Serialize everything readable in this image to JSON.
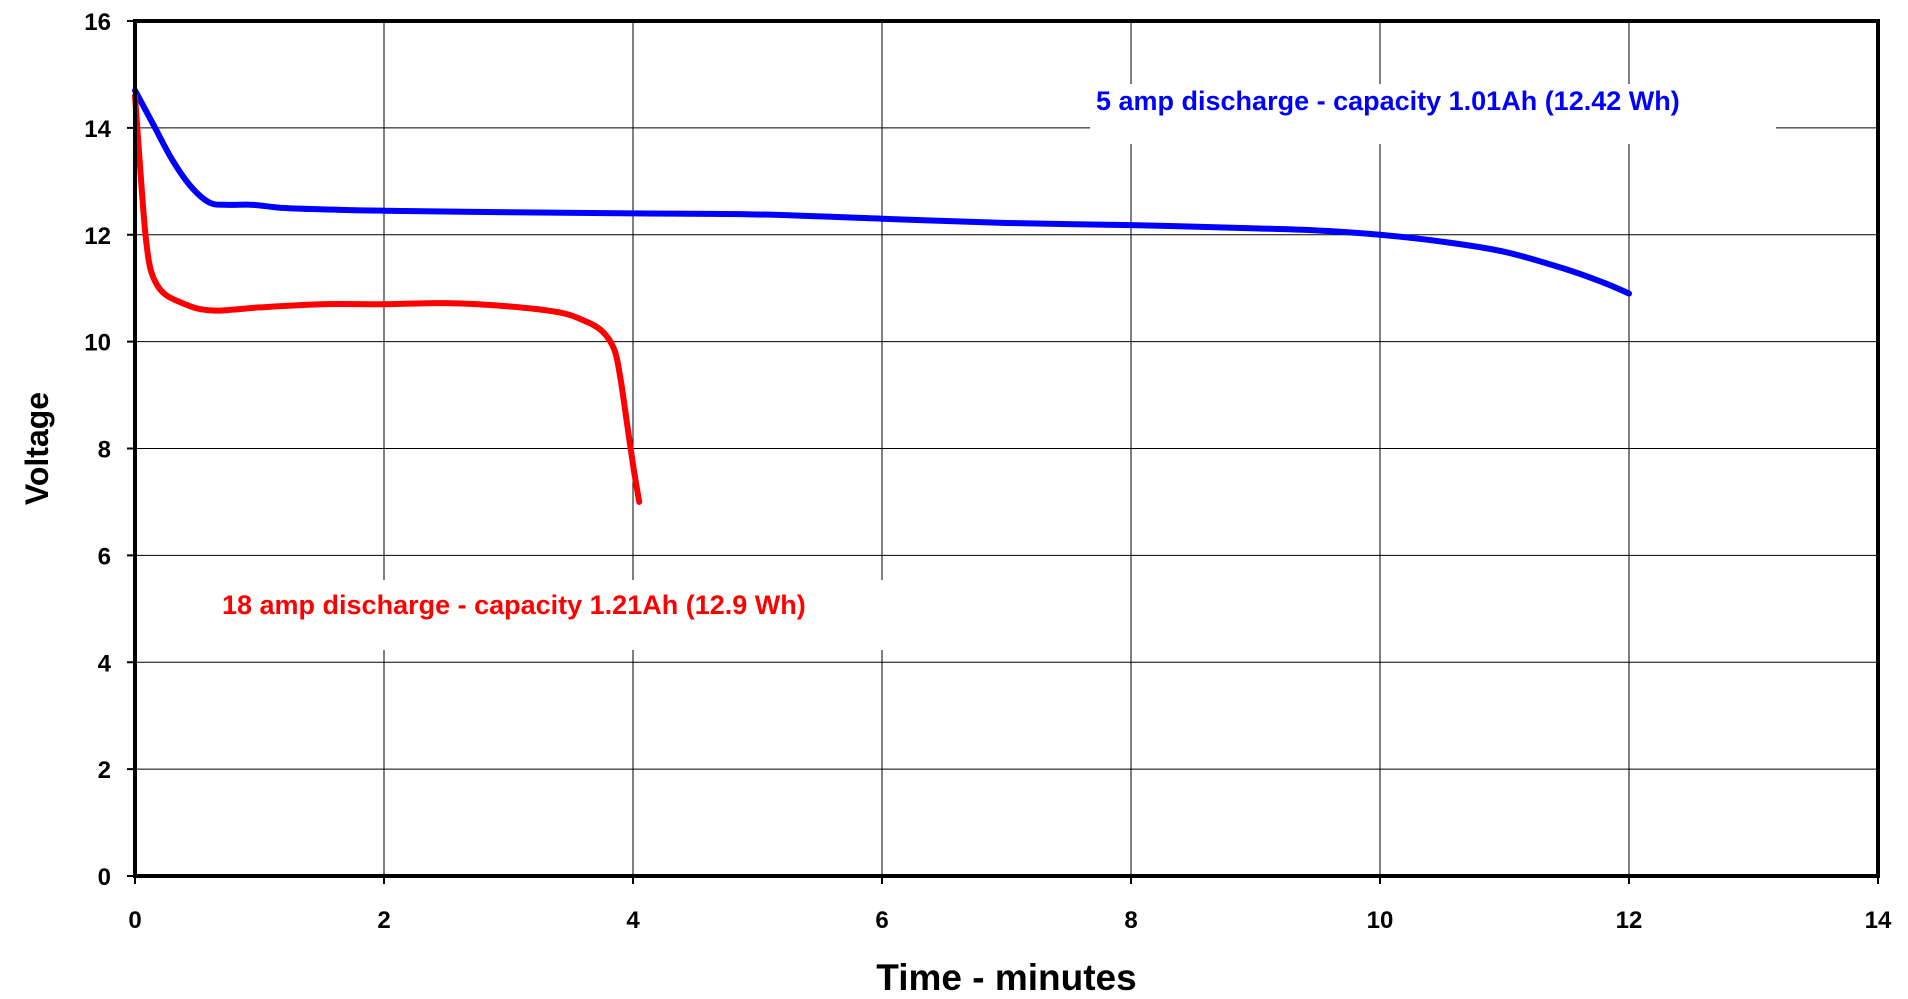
{
  "chart_data": {
    "type": "line",
    "xlabel": "Time - minutes",
    "ylabel": "Voltage",
    "xlim": [
      0,
      14
    ],
    "ylim": [
      0,
      16
    ],
    "xticks": [
      "0",
      "2",
      "4",
      "6",
      "8",
      "10",
      "12",
      "14"
    ],
    "yticks": [
      "0",
      "2",
      "4",
      "6",
      "8",
      "10",
      "12",
      "14",
      "16"
    ],
    "grid": true,
    "series": [
      {
        "name": "5 amp discharge - capacity 1.01Ah (12.42 Wh)",
        "color": "#0000ff",
        "x": [
          0,
          0.15,
          0.3,
          0.45,
          0.6,
          0.75,
          0.95,
          1.2,
          1.6,
          2,
          3,
          4,
          5,
          6,
          7,
          8,
          9,
          9.5,
          10,
          10.5,
          11,
          11.5,
          11.8,
          12
        ],
        "y": [
          14.7,
          14.05,
          13.4,
          12.9,
          12.6,
          12.56,
          12.56,
          12.5,
          12.47,
          12.45,
          12.42,
          12.4,
          12.38,
          12.3,
          12.22,
          12.18,
          12.12,
          12.08,
          12.0,
          11.87,
          11.68,
          11.35,
          11.1,
          10.9
        ]
      },
      {
        "name": "18 amp discharge - capacity 1.21Ah (12.9 Wh)",
        "color": "#ff0000",
        "x": [
          0,
          0.04,
          0.08,
          0.12,
          0.18,
          0.25,
          0.35,
          0.5,
          0.65,
          0.8,
          1,
          1.5,
          2,
          2.5,
          3,
          3.4,
          3.6,
          3.75,
          3.85,
          3.9,
          3.95,
          4.0,
          4.05
        ],
        "y": [
          14.6,
          13.3,
          12.1,
          11.4,
          11.05,
          10.87,
          10.75,
          10.62,
          10.58,
          10.6,
          10.64,
          10.7,
          10.7,
          10.72,
          10.66,
          10.55,
          10.4,
          10.2,
          9.85,
          9.3,
          8.5,
          7.7,
          7.0
        ]
      }
    ],
    "annotations": [
      {
        "text": "5 amp discharge - capacity 1.01Ah (12.42 Wh)",
        "color": "#0000ff"
      },
      {
        "text": "18 amp discharge - capacity 1.21Ah (12.9 Wh)",
        "color": "#ff0000"
      }
    ]
  }
}
